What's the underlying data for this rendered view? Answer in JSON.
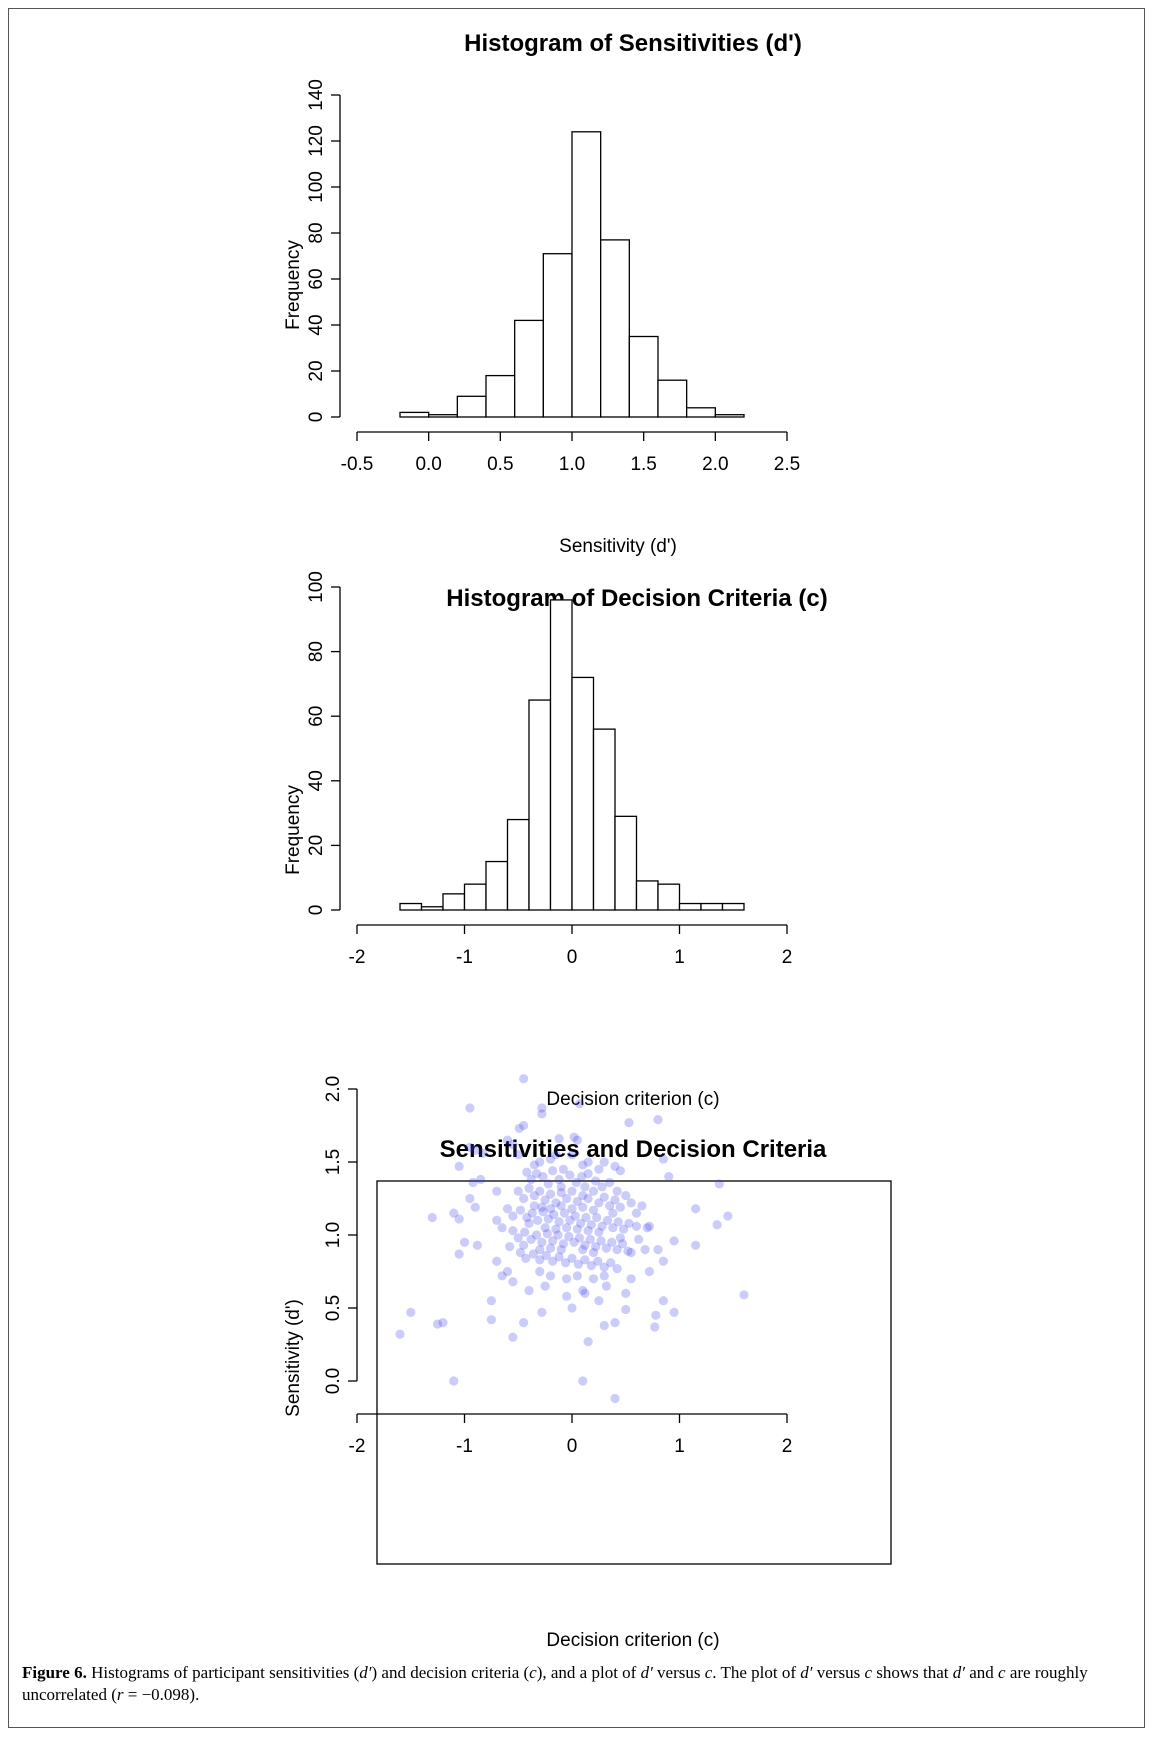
{
  "chart_data": [
    {
      "type": "bar",
      "title": "Histogram of Sensitivities (d')",
      "xlabel": "Sensitivity (d')",
      "ylabel": "Frequency",
      "xlim": [
        -0.5,
        2.5
      ],
      "ylim": [
        0,
        140
      ],
      "x_ticks": [
        "-0.5",
        "0.0",
        "0.5",
        "1.0",
        "1.5",
        "2.0",
        "2.5"
      ],
      "y_ticks": [
        "0",
        "20",
        "40",
        "60",
        "80",
        "100",
        "120",
        "140"
      ],
      "bin_edges": [
        -0.2,
        0.0,
        0.2,
        0.4,
        0.6,
        0.8,
        1.0,
        1.2,
        1.4,
        1.6,
        1.8,
        2.0,
        2.2
      ],
      "values": [
        2,
        1,
        9,
        18,
        42,
        71,
        124,
        77,
        35,
        16,
        4,
        1
      ]
    },
    {
      "type": "bar",
      "title": "Histogram of Decision Criteria (c)",
      "xlabel": "Decision criterion (c)",
      "ylabel": "Frequency",
      "xlim": [
        -2,
        2
      ],
      "ylim": [
        0,
        100
      ],
      "x_ticks": [
        "-2",
        "-1",
        "0",
        "1",
        "2"
      ],
      "y_ticks": [
        "0",
        "20",
        "40",
        "60",
        "80",
        "100"
      ],
      "bin_edges": [
        -1.6,
        -1.4,
        -1.2,
        -1.0,
        -0.8,
        -0.6,
        -0.4,
        -0.2,
        0.0,
        0.2,
        0.4,
        0.6,
        0.8,
        1.0,
        1.2,
        1.4,
        1.6
      ],
      "values": [
        2,
        1,
        5,
        8,
        15,
        28,
        65,
        96,
        72,
        56,
        29,
        9,
        8,
        2,
        2,
        2
      ]
    },
    {
      "type": "scatter",
      "title": "Sensitivities and Decision Criteria",
      "xlabel": "Decision criterion (c)",
      "ylabel": "Sensitivity (d')",
      "xlim": [
        -2,
        2
      ],
      "ylim": [
        0,
        2
      ],
      "x_ticks": [
        "-2",
        "-1",
        "0",
        "1",
        "2"
      ],
      "y_ticks": [
        "0.0",
        "0.5",
        "1.0",
        "1.5",
        "2.0"
      ],
      "color": "#3333ee",
      "points": [
        [
          -0.45,
          2.07
        ],
        [
          -0.95,
          1.87
        ],
        [
          -0.28,
          1.87
        ],
        [
          0.07,
          1.9
        ],
        [
          -0.28,
          1.83
        ],
        [
          0.8,
          1.79
        ],
        [
          0.53,
          1.77
        ],
        [
          -0.49,
          1.73
        ],
        [
          -0.45,
          1.75
        ],
        [
          0.02,
          1.67
        ],
        [
          0.05,
          1.65
        ],
        [
          -0.12,
          1.66
        ],
        [
          -0.6,
          1.65
        ],
        [
          -0.55,
          1.62
        ],
        [
          -0.95,
          1.6
        ],
        [
          -0.9,
          1.58
        ],
        [
          -0.83,
          1.56
        ],
        [
          -1.05,
          1.47
        ],
        [
          0.85,
          1.52
        ],
        [
          0.4,
          1.47
        ],
        [
          0.45,
          1.44
        ],
        [
          -0.5,
          1.55
        ],
        [
          -0.3,
          1.5
        ],
        [
          -0.2,
          1.52
        ],
        [
          0.1,
          1.48
        ],
        [
          0.3,
          1.5
        ],
        [
          -0.85,
          1.38
        ],
        [
          -0.92,
          1.36
        ],
        [
          -0.95,
          1.25
        ],
        [
          -1.1,
          1.15
        ],
        [
          -1.05,
          1.11
        ],
        [
          -0.9,
          1.19
        ],
        [
          -1.3,
          1.12
        ],
        [
          -1.0,
          0.95
        ],
        [
          -1.05,
          0.87
        ],
        [
          -0.88,
          0.93
        ],
        [
          -0.7,
          1.3
        ],
        [
          -0.7,
          1.1
        ],
        [
          -0.7,
          0.82
        ],
        [
          -0.65,
          0.72
        ],
        [
          -0.6,
          0.75
        ],
        [
          -0.55,
          0.68
        ],
        [
          -0.75,
          0.55
        ],
        [
          -0.75,
          0.42
        ],
        [
          -0.55,
          0.3
        ],
        [
          -0.45,
          0.4
        ],
        [
          -0.28,
          0.47
        ],
        [
          -1.6,
          0.32
        ],
        [
          -1.5,
          0.47
        ],
        [
          -1.25,
          0.39
        ],
        [
          -1.2,
          0.4
        ],
        [
          -1.1,
          0.0
        ],
        [
          0.1,
          0.0
        ],
        [
          0.4,
          -0.12
        ],
        [
          0.15,
          0.27
        ],
        [
          0.3,
          0.38
        ],
        [
          0.4,
          0.4
        ],
        [
          0.5,
          0.49
        ],
        [
          0.78,
          0.45
        ],
        [
          0.85,
          0.55
        ],
        [
          0.95,
          0.47
        ],
        [
          0.77,
          0.37
        ],
        [
          1.6,
          0.59
        ],
        [
          0.8,
          0.9
        ],
        [
          0.85,
          0.82
        ],
        [
          0.72,
          0.75
        ],
        [
          0.95,
          0.96
        ],
        [
          1.15,
          0.93
        ],
        [
          1.35,
          1.07
        ],
        [
          1.45,
          1.13
        ],
        [
          1.15,
          1.18
        ],
        [
          1.37,
          1.35
        ],
        [
          0.72,
          1.06
        ],
        [
          0.9,
          1.4
        ],
        [
          0.55,
          0.88
        ],
        [
          0.55,
          0.7
        ],
        [
          0.32,
          0.65
        ],
        [
          0.1,
          0.62
        ],
        [
          0.0,
          0.5
        ],
        [
          -0.05,
          0.58
        ],
        [
          -0.25,
          0.65
        ],
        [
          -0.3,
          0.75
        ],
        [
          0.05,
          0.72
        ],
        [
          0.2,
          0.7
        ],
        [
          0.25,
          0.55
        ],
        [
          0.12,
          0.6
        ],
        [
          -0.42,
          1.43
        ],
        [
          -0.38,
          1.38
        ],
        [
          -0.33,
          1.42
        ],
        [
          -0.27,
          1.4
        ],
        [
          -0.22,
          1.35
        ],
        [
          -0.18,
          1.44
        ],
        [
          -0.12,
          1.38
        ],
        [
          -0.08,
          1.45
        ],
        [
          -0.02,
          1.41
        ],
        [
          0.04,
          1.36
        ],
        [
          0.09,
          1.4
        ],
        [
          0.15,
          1.42
        ],
        [
          0.22,
          1.37
        ],
        [
          0.28,
          1.33
        ],
        [
          0.35,
          1.36
        ],
        [
          0.42,
          1.3
        ],
        [
          0.5,
          1.27
        ],
        [
          -0.5,
          1.3
        ],
        [
          -0.45,
          1.25
        ],
        [
          -0.4,
          1.32
        ],
        [
          -0.35,
          1.27
        ],
        [
          -0.3,
          1.3
        ],
        [
          -0.25,
          1.24
        ],
        [
          -0.2,
          1.28
        ],
        [
          -0.15,
          1.22
        ],
        [
          -0.1,
          1.29
        ],
        [
          -0.05,
          1.25
        ],
        [
          0.0,
          1.3
        ],
        [
          0.05,
          1.23
        ],
        [
          0.1,
          1.27
        ],
        [
          0.15,
          1.25
        ],
        [
          0.2,
          1.3
        ],
        [
          0.25,
          1.22
        ],
        [
          0.3,
          1.26
        ],
        [
          0.35,
          1.2
        ],
        [
          0.4,
          1.24
        ],
        [
          0.45,
          1.19
        ],
        [
          0.55,
          1.22
        ],
        [
          0.6,
          1.15
        ],
        [
          0.65,
          1.2
        ],
        [
          -0.6,
          1.18
        ],
        [
          -0.55,
          1.13
        ],
        [
          -0.48,
          1.17
        ],
        [
          -0.42,
          1.12
        ],
        [
          -0.37,
          1.15
        ],
        [
          -0.32,
          1.1
        ],
        [
          -0.27,
          1.16
        ],
        [
          -0.22,
          1.11
        ],
        [
          -0.17,
          1.14
        ],
        [
          -0.12,
          1.09
        ],
        [
          -0.07,
          1.15
        ],
        [
          -0.02,
          1.1
        ],
        [
          0.03,
          1.13
        ],
        [
          0.08,
          1.08
        ],
        [
          0.13,
          1.12
        ],
        [
          0.18,
          1.07
        ],
        [
          0.23,
          1.12
        ],
        [
          0.28,
          1.06
        ],
        [
          0.33,
          1.1
        ],
        [
          0.38,
          1.05
        ],
        [
          0.43,
          1.09
        ],
        [
          0.48,
          1.04
        ],
        [
          0.53,
          1.08
        ],
        [
          0.6,
          1.06
        ],
        [
          0.7,
          1.05
        ],
        [
          -0.55,
          1.03
        ],
        [
          -0.5,
          0.98
        ],
        [
          -0.44,
          1.02
        ],
        [
          -0.38,
          0.97
        ],
        [
          -0.33,
          1.0
        ],
        [
          -0.28,
          0.95
        ],
        [
          -0.23,
          1.01
        ],
        [
          -0.18,
          0.96
        ],
        [
          -0.13,
          1.0
        ],
        [
          -0.08,
          0.94
        ],
        [
          -0.03,
          0.99
        ],
        [
          0.02,
          0.95
        ],
        [
          0.07,
          0.98
        ],
        [
          0.12,
          0.93
        ],
        [
          0.17,
          0.97
        ],
        [
          0.22,
          0.92
        ],
        [
          0.27,
          0.96
        ],
        [
          0.32,
          0.91
        ],
        [
          0.37,
          0.95
        ],
        [
          0.42,
          0.9
        ],
        [
          0.47,
          0.94
        ],
        [
          0.52,
          0.89
        ],
        [
          -0.48,
          0.88
        ],
        [
          -0.43,
          0.84
        ],
        [
          -0.36,
          0.87
        ],
        [
          -0.3,
          0.83
        ],
        [
          -0.24,
          0.86
        ],
        [
          -0.18,
          0.82
        ],
        [
          -0.12,
          0.85
        ],
        [
          -0.06,
          0.81
        ],
        [
          0.0,
          0.84
        ],
        [
          0.06,
          0.8
        ],
        [
          0.12,
          0.83
        ],
        [
          0.18,
          0.79
        ],
        [
          0.24,
          0.82
        ],
        [
          0.3,
          0.78
        ],
        [
          0.36,
          0.81
        ],
        [
          0.42,
          0.77
        ],
        [
          -0.35,
          1.2
        ],
        [
          -0.28,
          1.19
        ],
        [
          -0.2,
          1.18
        ],
        [
          -0.1,
          1.2
        ],
        [
          0.0,
          1.18
        ],
        [
          0.1,
          1.19
        ],
        [
          0.2,
          1.17
        ],
        [
          -0.25,
          1.05
        ],
        [
          -0.15,
          1.04
        ],
        [
          -0.05,
          1.05
        ],
        [
          0.05,
          1.04
        ],
        [
          0.15,
          1.03
        ],
        [
          0.25,
          1.02
        ],
        [
          -0.3,
          0.9
        ],
        [
          -0.2,
          0.91
        ],
        [
          -0.1,
          0.9
        ],
        [
          0.1,
          0.9
        ],
        [
          0.2,
          0.88
        ],
        [
          -0.4,
          1.08
        ],
        [
          -0.1,
          1.33
        ],
        [
          0.12,
          1.33
        ],
        [
          -0.45,
          0.93
        ],
        [
          0.38,
          1.15
        ],
        [
          0.45,
          0.98
        ],
        [
          -0.58,
          0.92
        ],
        [
          0.62,
          0.97
        ],
        [
          -0.65,
          1.05
        ],
        [
          0.68,
          0.9
        ],
        [
          -0.2,
          0.72
        ],
        [
          0.15,
          1.5
        ],
        [
          -0.15,
          1.55
        ],
        [
          0.25,
          1.45
        ],
        [
          -0.05,
          0.7
        ],
        [
          0.3,
          0.72
        ],
        [
          0.5,
          0.6
        ],
        [
          -0.4,
          0.62
        ],
        [
          0.0,
          1.55
        ],
        [
          -0.35,
          1.48
        ]
      ]
    }
  ],
  "caption": {
    "label": "Figure 6.",
    "parts": [
      {
        "t": " Histograms of participant sensitivities (",
        "i": false
      },
      {
        "t": "d′",
        "i": true
      },
      {
        "t": ") and decision criteria (",
        "i": false
      },
      {
        "t": "c",
        "i": true
      },
      {
        "t": "), and a plot of ",
        "i": false
      },
      {
        "t": "d′",
        "i": true
      },
      {
        "t": " versus ",
        "i": false
      },
      {
        "t": "c",
        "i": true
      },
      {
        "t": ". The plot of ",
        "i": false
      },
      {
        "t": "d′",
        "i": true
      },
      {
        "t": " versus ",
        "i": false
      },
      {
        "t": "c",
        "i": true
      },
      {
        "t": " shows that ",
        "i": false
      },
      {
        "t": "d′",
        "i": true
      },
      {
        "t": " and ",
        "i": false
      },
      {
        "t": "c",
        "i": true
      },
      {
        "t": " are roughly uncorrelated (",
        "i": false
      },
      {
        "t": "r",
        "i": true
      },
      {
        "t": " = −0.098).",
        "i": false
      }
    ]
  }
}
